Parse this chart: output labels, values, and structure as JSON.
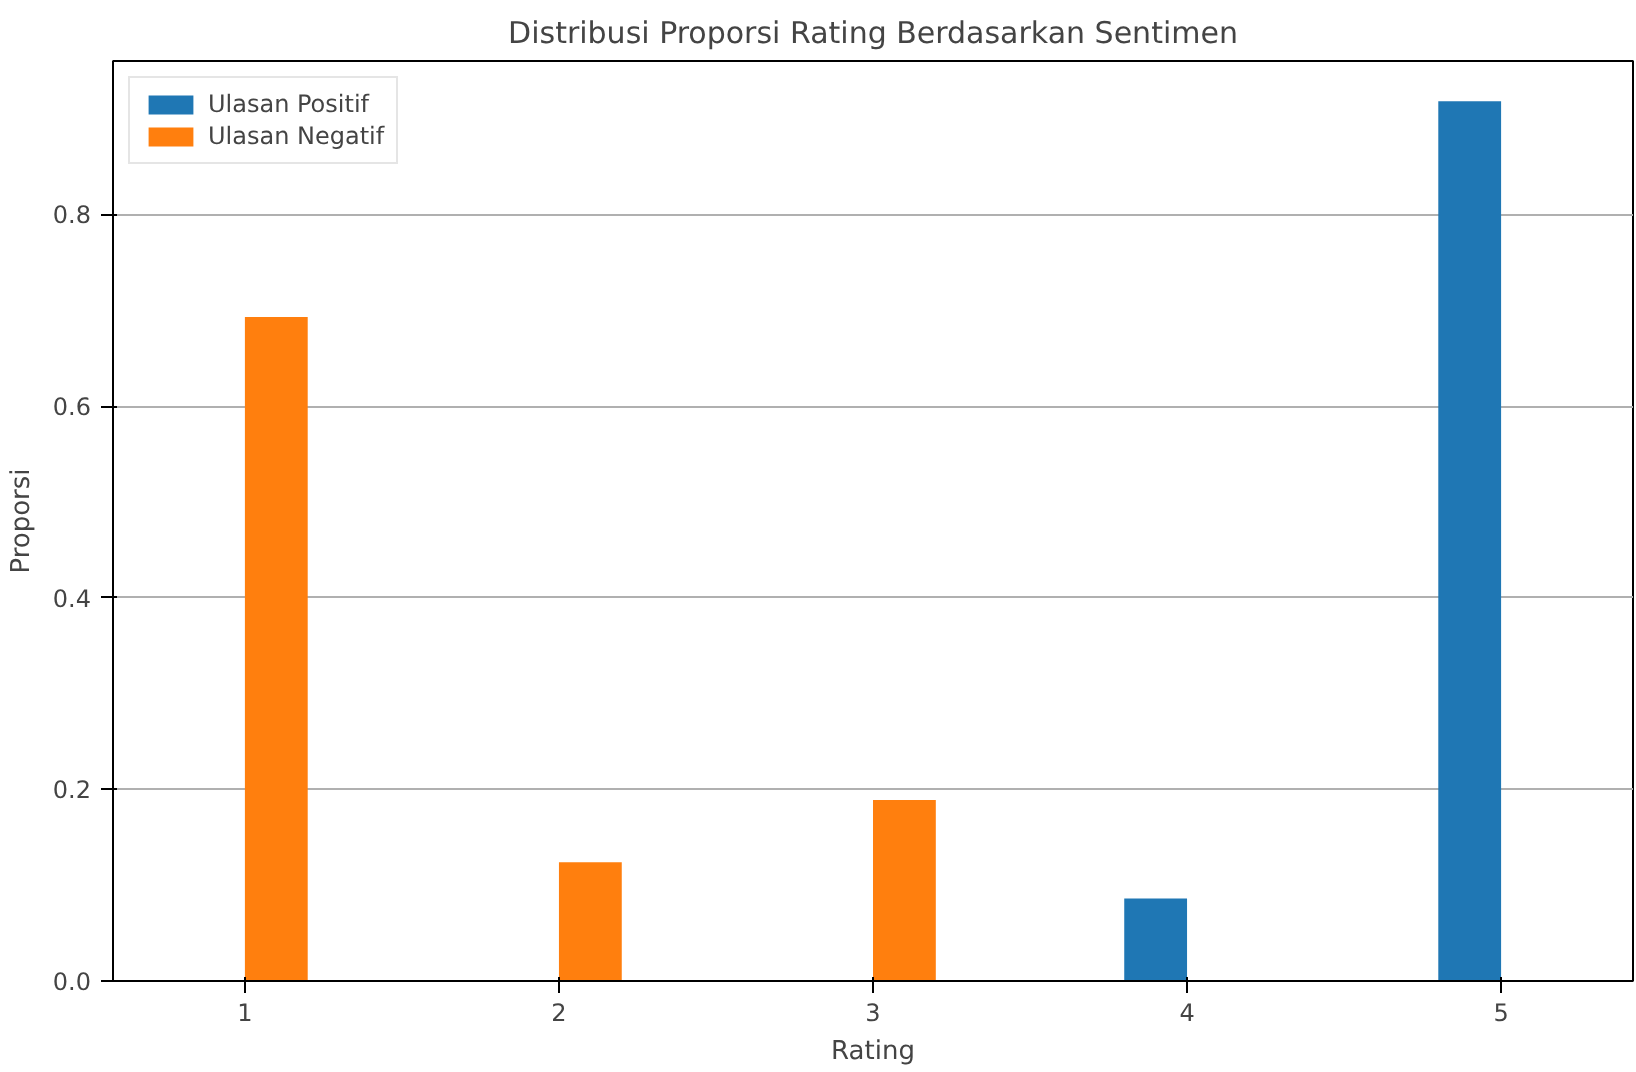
{
  "chart_data": {
    "type": "bar",
    "title": "Distribusi Proporsi Rating Berdasarkan Sentimen",
    "xlabel": "Rating",
    "ylabel": "Proporsi",
    "x": [
      1,
      2,
      3,
      4,
      5
    ],
    "series": [
      {
        "name": "Ulasan Positif",
        "color": "#1f77b4",
        "values": [
          0,
          0,
          0,
          0.086,
          0.918
        ]
      },
      {
        "name": "Ulasan Negatif",
        "color": "#ff7f0e",
        "values": [
          0.693,
          0.124,
          0.189,
          0,
          0
        ]
      }
    ],
    "xlim": [
      0.58,
      5.42
    ],
    "xticks": [
      1,
      2,
      3,
      4,
      5
    ],
    "ylim": [
      0,
      0.96
    ],
    "yticks": [
      {
        "value": 0,
        "label": "0.0"
      },
      {
        "value": 0.2,
        "label": "0.2"
      },
      {
        "value": 0.4,
        "label": "0.4"
      },
      {
        "value": 0.6,
        "label": "0.6"
      },
      {
        "value": 0.8,
        "label": "0.8"
      }
    ],
    "grid": "y",
    "legend": "top left"
  }
}
